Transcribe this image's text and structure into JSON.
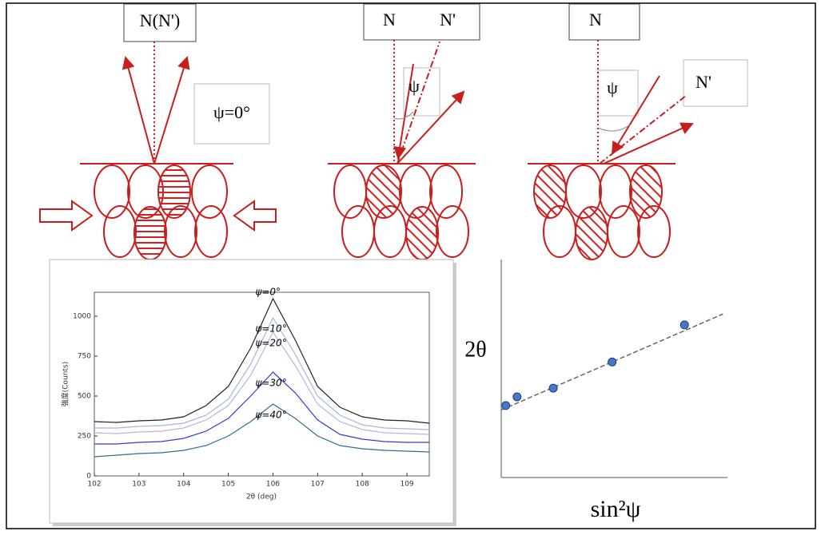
{
  "diagram": {
    "panels": [
      {
        "normal": "N(N')",
        "angle": "ψ=0°"
      },
      {
        "normal": "N",
        "tilted_normal": "N'",
        "angle": "ψ"
      },
      {
        "normal": "N",
        "angle": "ψ",
        "tilted_normal": "N'"
      }
    ]
  },
  "chart_data": [
    {
      "type": "line",
      "xlabel": "2θ (deg)",
      "ylabel": "強度(Counts)",
      "x": [
        102,
        102.5,
        103,
        103.5,
        104,
        104.5,
        105,
        105.5,
        106,
        106.5,
        107,
        107.5,
        108,
        108.5,
        109,
        109.5
      ],
      "series": [
        {
          "name": "ψ=0°",
          "color": "#222222",
          "values": [
            340,
            335,
            345,
            350,
            370,
            440,
            560,
            800,
            1110,
            850,
            560,
            430,
            370,
            350,
            345,
            330
          ]
        },
        {
          "name": "ψ=10°",
          "color": "#9ab8e6",
          "values": [
            300,
            300,
            310,
            315,
            330,
            380,
            480,
            700,
            990,
            760,
            500,
            380,
            320,
            300,
            295,
            290
          ]
        },
        {
          "name": "ψ=20°",
          "color": "#b9b3e8",
          "values": [
            270,
            265,
            275,
            280,
            300,
            350,
            440,
            630,
            900,
            690,
            450,
            340,
            290,
            270,
            265,
            260
          ]
        },
        {
          "name": "ψ=30°",
          "color": "#2f3fd0",
          "values": [
            200,
            200,
            210,
            215,
            235,
            280,
            360,
            500,
            650,
            520,
            350,
            260,
            230,
            215,
            210,
            210
          ]
        },
        {
          "name": "ψ=40°",
          "color": "#2f6e8e",
          "values": [
            120,
            130,
            140,
            145,
            160,
            190,
            250,
            340,
            450,
            360,
            250,
            190,
            170,
            160,
            155,
            150
          ]
        }
      ],
      "xlim": [
        102,
        109.5
      ],
      "xticks": [
        102,
        103,
        104,
        105,
        106,
        107,
        108,
        109
      ],
      "ylim": [
        0,
        1150
      ],
      "yticks": [
        0,
        250,
        500,
        750,
        1000
      ]
    },
    {
      "type": "scatter",
      "xlabel": "sin²ψ",
      "ylabel": "2θ",
      "x": [
        0.02,
        0.07,
        0.23,
        0.49,
        0.81
      ],
      "values": [
        0.33,
        0.37,
        0.41,
        0.53,
        0.7
      ],
      "color": "#4a78c8",
      "fit_line": {
        "x": [
          0,
          0.98
        ],
        "y": [
          0.31,
          0.75
        ]
      },
      "xlim": [
        0,
        1
      ],
      "ylim": [
        0,
        1
      ]
    }
  ]
}
